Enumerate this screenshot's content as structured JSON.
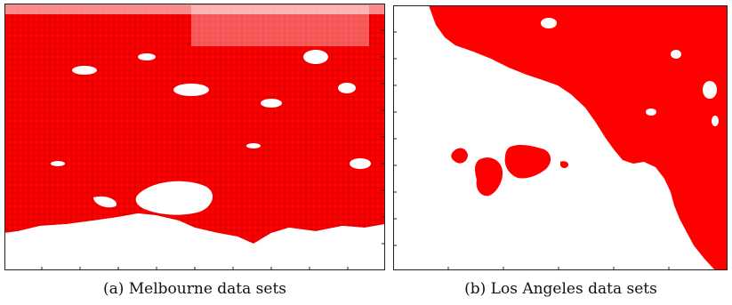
{
  "colors": {
    "data_points": "#ff0000",
    "land_background": "#ffffff",
    "frame": "#222222"
  },
  "panels": [
    {
      "id": "a",
      "caption": "(a) Melbourne data sets"
    },
    {
      "id": "b",
      "caption": "(b) Los Angeles data sets"
    }
  ]
}
